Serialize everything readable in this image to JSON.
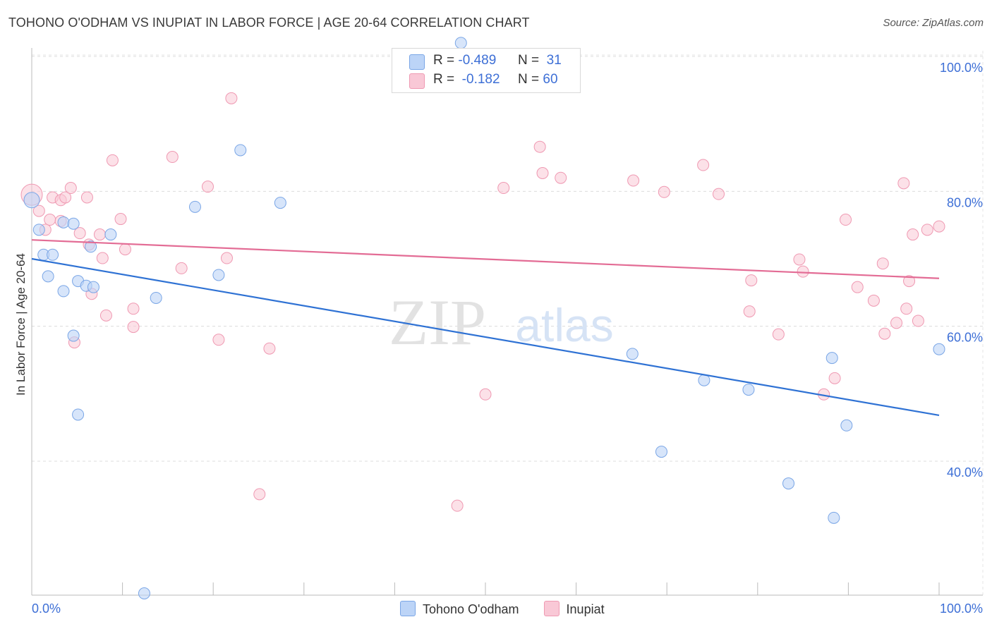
{
  "header": {
    "title": "TOHONO O'ODHAM VS INUPIAT IN LABOR FORCE | AGE 20-64 CORRELATION CHART",
    "source": "Source: ZipAtlas.com"
  },
  "legend_top": {
    "rows": [
      {
        "r_label": "R =",
        "r_value": "-0.489",
        "n_label": "N =",
        "n_value": "31"
      },
      {
        "r_label": "R =",
        "r_value": "-0.182",
        "n_label": "N =",
        "n_value": "60"
      }
    ]
  },
  "legend_bottom": {
    "series1": "Tohono O'odham",
    "series2": "Inupiat"
  },
  "watermark": {
    "part1": "ZIP",
    "part2": "atlas"
  },
  "colors": {
    "blue_fill": "#bcd4f7",
    "blue_stroke": "#7aa6e6",
    "blue_line": "#2f72d4",
    "pink_fill": "#f9c8d6",
    "pink_stroke": "#ef99b2",
    "pink_line": "#e36c95",
    "axis_text": "#3d6fd6"
  },
  "chart_data": {
    "type": "scatter",
    "title": "TOHONO O'ODHAM VS INUPIAT IN LABOR FORCE | AGE 20-64 CORRELATION CHART",
    "xlabel": "",
    "ylabel": "In Labor Force | Age 20-64",
    "xlim": [
      0,
      100
    ],
    "ylim": [
      20,
      102
    ],
    "x_tick_labels": [
      "0.0%",
      "100.0%"
    ],
    "y_ticks": [
      {
        "value": 100,
        "label": "100.0%"
      },
      {
        "value": 80,
        "label": "80.0%"
      },
      {
        "value": 60,
        "label": "60.0%"
      },
      {
        "value": 40,
        "label": "40.0%"
      }
    ],
    "grid": true,
    "series": [
      {
        "name": "Tohono O'odham",
        "color": "#7aa6e6",
        "R": -0.489,
        "N": 31,
        "trend": [
          [
            0,
            70.0
          ],
          [
            100,
            46.8
          ]
        ],
        "points": [
          [
            0.0,
            78.7
          ],
          [
            0.8,
            74.3
          ],
          [
            1.3,
            70.6
          ],
          [
            1.8,
            67.4
          ],
          [
            2.3,
            70.6
          ],
          [
            3.5,
            65.2
          ],
          [
            3.5,
            75.4
          ],
          [
            4.6,
            75.2
          ],
          [
            4.6,
            58.6
          ],
          [
            5.1,
            66.7
          ],
          [
            5.1,
            46.9
          ],
          [
            6.0,
            66.0
          ],
          [
            6.5,
            71.8
          ],
          [
            6.8,
            65.8
          ],
          [
            8.7,
            73.6
          ],
          [
            12.4,
            20.4
          ],
          [
            13.7,
            64.2
          ],
          [
            18.0,
            77.7
          ],
          [
            20.6,
            67.6
          ],
          [
            23.0,
            86.1
          ],
          [
            27.4,
            78.3
          ],
          [
            47.3,
            102.0
          ],
          [
            66.2,
            55.9
          ],
          [
            69.4,
            41.4
          ],
          [
            74.1,
            52.0
          ],
          [
            79.0,
            50.6
          ],
          [
            83.4,
            36.7
          ],
          [
            88.2,
            55.3
          ],
          [
            88.4,
            31.6
          ],
          [
            89.8,
            45.3
          ],
          [
            100.0,
            56.6
          ]
        ]
      },
      {
        "name": "Inupiat",
        "color": "#ef99b2",
        "R": -0.182,
        "N": 60,
        "trend": [
          [
            0,
            72.8
          ],
          [
            100,
            67.1
          ]
        ],
        "points": [
          [
            0.0,
            79.5
          ],
          [
            0.8,
            77.1
          ],
          [
            1.5,
            74.3
          ],
          [
            2.0,
            75.8
          ],
          [
            2.3,
            79.1
          ],
          [
            3.2,
            75.6
          ],
          [
            3.2,
            78.7
          ],
          [
            3.7,
            79.1
          ],
          [
            4.3,
            80.5
          ],
          [
            4.7,
            57.6
          ],
          [
            5.3,
            73.8
          ],
          [
            6.1,
            79.1
          ],
          [
            6.3,
            72.1
          ],
          [
            6.6,
            64.8
          ],
          [
            7.5,
            73.6
          ],
          [
            7.8,
            70.1
          ],
          [
            8.2,
            61.6
          ],
          [
            8.9,
            84.6
          ],
          [
            9.8,
            75.9
          ],
          [
            10.3,
            71.4
          ],
          [
            11.2,
            59.9
          ],
          [
            11.2,
            62.6
          ],
          [
            15.5,
            85.1
          ],
          [
            16.5,
            68.6
          ],
          [
            19.4,
            80.7
          ],
          [
            20.6,
            58.0
          ],
          [
            21.5,
            70.1
          ],
          [
            22.0,
            93.8
          ],
          [
            25.1,
            35.1
          ],
          [
            26.2,
            56.7
          ],
          [
            46.9,
            33.4
          ],
          [
            50.0,
            49.9
          ],
          [
            52.0,
            80.5
          ],
          [
            56.0,
            86.6
          ],
          [
            56.3,
            82.7
          ],
          [
            58.3,
            82.0
          ],
          [
            66.3,
            81.6
          ],
          [
            69.7,
            79.9
          ],
          [
            74.0,
            83.9
          ],
          [
            75.7,
            79.6
          ],
          [
            79.3,
            66.8
          ],
          [
            79.1,
            62.2
          ],
          [
            82.3,
            58.8
          ],
          [
            84.6,
            69.9
          ],
          [
            85.0,
            68.1
          ],
          [
            87.3,
            49.9
          ],
          [
            88.5,
            52.3
          ],
          [
            89.7,
            75.8
          ],
          [
            91.0,
            65.8
          ],
          [
            92.8,
            63.8
          ],
          [
            93.8,
            69.3
          ],
          [
            94.0,
            58.9
          ],
          [
            95.3,
            60.5
          ],
          [
            96.1,
            81.2
          ],
          [
            96.4,
            62.6
          ],
          [
            96.7,
            66.7
          ],
          [
            97.1,
            73.6
          ],
          [
            97.7,
            60.8
          ],
          [
            98.7,
            74.3
          ],
          [
            100.0,
            74.8
          ]
        ]
      }
    ]
  }
}
